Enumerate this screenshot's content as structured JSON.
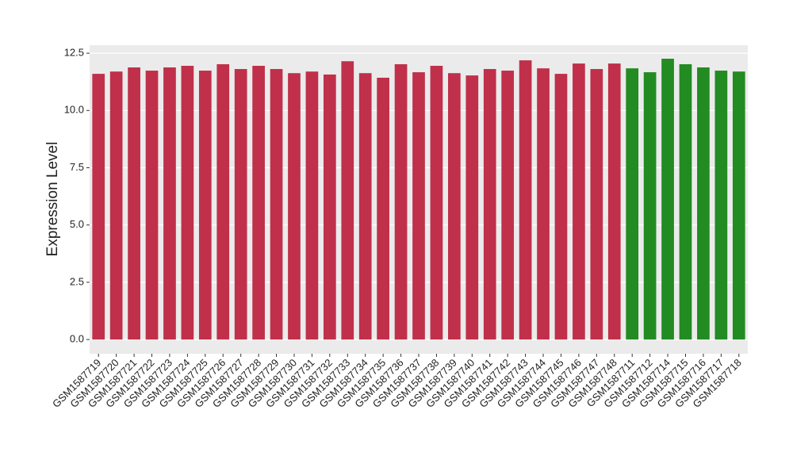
{
  "chart_data": {
    "type": "bar",
    "y_label": "Expression Level",
    "categories": [
      "GSM1587719",
      "GSM1587720",
      "GSM1587721",
      "GSM1587722",
      "GSM1587723",
      "GSM1587724",
      "GSM1587725",
      "GSM1587726",
      "GSM1587727",
      "GSM1587728",
      "GSM1587729",
      "GSM1587730",
      "GSM1587731",
      "GSM1587732",
      "GSM1587733",
      "GSM1587734",
      "GSM1587735",
      "GSM1587736",
      "GSM1587737",
      "GSM1587738",
      "GSM1587739",
      "GSM1587740",
      "GSM1587741",
      "GSM1587742",
      "GSM1587743",
      "GSM1587744",
      "GSM1587745",
      "GSM1587746",
      "GSM1587747",
      "GSM1587748",
      "GSM1587711",
      "GSM1587712",
      "GSM1587714",
      "GSM1587715",
      "GSM1587716",
      "GSM1587717",
      "GSM1587718"
    ],
    "values": [
      11.6,
      11.7,
      11.88,
      11.74,
      11.88,
      11.95,
      11.74,
      12.02,
      11.81,
      11.95,
      11.81,
      11.63,
      11.7,
      11.57,
      12.15,
      11.63,
      11.43,
      12.02,
      11.67,
      11.95,
      11.63,
      11.53,
      11.81,
      11.74,
      12.19,
      11.84,
      11.6,
      12.05,
      11.81,
      12.05,
      11.84,
      11.67,
      12.26,
      12.02,
      11.88,
      11.74,
      11.7
    ],
    "colors": [
      "#c0304a",
      "#c0304a",
      "#c0304a",
      "#c0304a",
      "#c0304a",
      "#c0304a",
      "#c0304a",
      "#c0304a",
      "#c0304a",
      "#c0304a",
      "#c0304a",
      "#c0304a",
      "#c0304a",
      "#c0304a",
      "#c0304a",
      "#c0304a",
      "#c0304a",
      "#c0304a",
      "#c0304a",
      "#c0304a",
      "#c0304a",
      "#c0304a",
      "#c0304a",
      "#c0304a",
      "#c0304a",
      "#c0304a",
      "#c0304a",
      "#c0304a",
      "#c0304a",
      "#c0304a",
      "#228b22",
      "#228b22",
      "#228b22",
      "#228b22",
      "#228b22",
      "#228b22",
      "#228b22"
    ],
    "ylim": [
      -0.62,
      12.85
    ],
    "yticks": [
      {
        "value": 0,
        "label": "0.0"
      },
      2.5,
      {
        "value": 5,
        "label": "5.0"
      },
      7.5,
      {
        "value": 10,
        "label": "10.0"
      },
      12.5
    ],
    "grid": true
  }
}
